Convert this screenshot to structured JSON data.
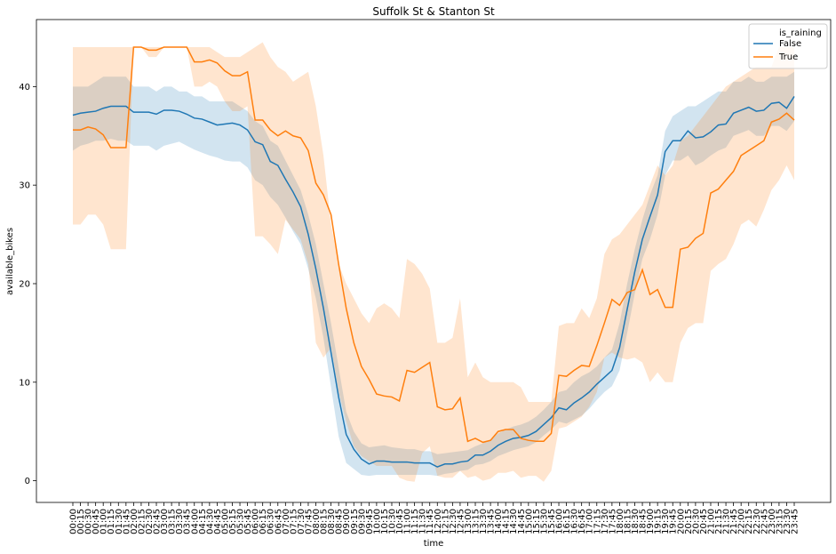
{
  "chart_data": {
    "type": "line",
    "title": "Suffolk St & Stanton St",
    "x_label": "time",
    "y_label": "available_bikes",
    "categories": [
      "00:00",
      "00:15",
      "00:30",
      "00:45",
      "01:00",
      "01:15",
      "01:30",
      "01:45",
      "02:00",
      "02:15",
      "02:30",
      "02:45",
      "03:00",
      "03:15",
      "03:30",
      "03:45",
      "04:00",
      "04:15",
      "04:30",
      "04:45",
      "05:00",
      "05:15",
      "05:30",
      "05:45",
      "06:00",
      "06:15",
      "06:30",
      "06:45",
      "07:00",
      "07:15",
      "07:30",
      "07:45",
      "08:00",
      "08:15",
      "08:30",
      "08:45",
      "09:00",
      "09:15",
      "09:30",
      "09:45",
      "10:00",
      "10:15",
      "10:30",
      "10:45",
      "11:00",
      "11:15",
      "11:30",
      "11:45",
      "12:00",
      "12:15",
      "12:30",
      "12:45",
      "13:00",
      "13:15",
      "13:30",
      "13:45",
      "14:00",
      "14:15",
      "14:30",
      "14:45",
      "15:00",
      "15:15",
      "15:30",
      "15:45",
      "16:00",
      "16:15",
      "16:30",
      "16:45",
      "17:00",
      "17:15",
      "17:30",
      "17:45",
      "18:00",
      "18:15",
      "18:30",
      "18:45",
      "19:00",
      "19:15",
      "19:30",
      "19:45",
      "20:00",
      "20:15",
      "20:30",
      "20:45",
      "21:00",
      "21:15",
      "21:30",
      "21:45",
      "22:00",
      "22:15",
      "22:30",
      "22:45",
      "23:00",
      "23:15",
      "23:30",
      "23:45"
    ],
    "legend_title": "is_raining",
    "legend_position": "upper right",
    "ylim": [
      -2.2,
      46.8
    ],
    "yticks": [
      0,
      10,
      20,
      30,
      40
    ],
    "series": [
      {
        "name": "False",
        "color": "#1f77b4",
        "values": [
          37.1,
          37.3,
          37.4,
          37.5,
          37.8,
          38.0,
          38.0,
          38.0,
          37.4,
          37.4,
          37.4,
          37.2,
          37.6,
          37.6,
          37.5,
          37.2,
          36.8,
          36.7,
          36.4,
          36.1,
          36.2,
          36.3,
          36.1,
          35.6,
          34.4,
          34.1,
          32.4,
          32.0,
          30.6,
          29.3,
          27.8,
          25.0,
          21.5,
          17.5,
          13.0,
          8.5,
          4.7,
          3.2,
          2.2,
          1.7,
          2.0,
          2.0,
          1.9,
          1.9,
          1.9,
          1.8,
          1.8,
          1.8,
          1.4,
          1.7,
          1.7,
          1.9,
          2.0,
          2.6,
          2.6,
          3.0,
          3.6,
          4.0,
          4.3,
          4.4,
          4.6,
          5.0,
          5.7,
          6.4,
          7.4,
          7.2,
          7.9,
          8.4,
          9.0,
          9.8,
          10.5,
          11.2,
          13.5,
          17.4,
          21.2,
          24.5,
          26.8,
          29.0,
          33.4,
          34.5,
          34.5,
          35.5,
          34.8,
          34.9,
          35.4,
          36.1,
          36.2,
          37.3,
          37.6,
          37.9,
          37.5,
          37.6,
          38.3,
          38.4,
          37.8,
          39.0
        ],
        "upper": [
          40,
          40,
          40,
          40.5,
          41,
          41,
          41,
          41,
          40,
          40,
          40,
          39.5,
          40,
          40,
          39.5,
          39.5,
          39,
          39,
          38.5,
          38.5,
          38.5,
          38.5,
          38,
          37.5,
          36.5,
          36,
          34.5,
          34,
          32.5,
          31,
          29.5,
          27,
          24,
          20,
          16,
          11.5,
          7,
          5,
          3.8,
          3.4,
          3.5,
          3.6,
          3.4,
          3.3,
          3.2,
          3.2,
          3,
          3,
          2.7,
          2.8,
          2.9,
          3,
          3.1,
          3.5,
          3.8,
          4.2,
          4.8,
          5.2,
          5.5,
          5.7,
          6,
          6.5,
          7.2,
          8,
          9,
          9.2,
          10,
          10.6,
          11,
          11.6,
          12.5,
          13.3,
          16,
          20,
          23.5,
          26.5,
          29,
          31,
          35.5,
          37,
          37.5,
          38,
          38,
          38.5,
          39,
          39.5,
          39.5,
          40.5,
          40.5,
          41,
          40.5,
          40.5,
          41,
          41,
          41,
          41.5
        ],
        "lower": [
          33.5,
          34,
          34.2,
          34.5,
          34.5,
          34.7,
          34.5,
          34.5,
          34,
          34,
          34,
          33.5,
          34,
          34.2,
          34.4,
          34,
          33.6,
          33.3,
          33,
          32.8,
          32.5,
          32.4,
          32.4,
          31.8,
          30.5,
          30,
          28.8,
          28,
          26.7,
          25.3,
          24,
          21.5,
          18.5,
          14.5,
          9.5,
          4.5,
          1.8,
          1.2,
          0.6,
          0.5,
          0.6,
          0.6,
          0.6,
          0.6,
          0.6,
          0.6,
          0.6,
          0.6,
          0.5,
          0.7,
          0.8,
          1,
          1.1,
          1.6,
          1.7,
          2,
          2.5,
          2.8,
          3.1,
          3.3,
          3.5,
          3.9,
          4.6,
          5.2,
          6,
          5.8,
          6.2,
          6.6,
          7.3,
          8.2,
          9,
          9.6,
          11.2,
          15,
          19,
          22.5,
          24.5,
          27,
          31,
          32.5,
          32.5,
          33,
          32,
          32.4,
          33,
          33.5,
          33.8,
          35,
          35.3,
          35.6,
          35,
          35,
          36,
          36,
          35.5,
          36.5
        ]
      },
      {
        "name": "True",
        "color": "#ff7f0e",
        "values": [
          35.6,
          35.6,
          35.9,
          35.7,
          35.1,
          33.8,
          33.8,
          33.8,
          44.0,
          44.0,
          43.7,
          43.7,
          44.0,
          44.0,
          44.0,
          44.0,
          42.5,
          42.5,
          42.7,
          42.4,
          41.6,
          41.1,
          41.1,
          41.5,
          36.6,
          36.6,
          35.6,
          35.0,
          35.5,
          35.0,
          34.8,
          33.5,
          30.2,
          29.0,
          27.0,
          22.0,
          17.5,
          14.0,
          11.6,
          10.3,
          8.8,
          8.6,
          8.5,
          8.1,
          11.2,
          11.0,
          11.5,
          12.0,
          7.5,
          7.2,
          7.3,
          8.4,
          4.0,
          4.3,
          3.9,
          4.1,
          5.0,
          5.2,
          5.2,
          4.3,
          4.1,
          4.0,
          4.0,
          4.8,
          10.7,
          10.6,
          11.2,
          11.7,
          11.6,
          13.7,
          16.0,
          18.4,
          17.8,
          19.1,
          19.4,
          21.4,
          18.9,
          19.4,
          17.6,
          17.6,
          23.5,
          23.7,
          24.6,
          25.1,
          29.2,
          29.6,
          30.5,
          31.4,
          33.0,
          33.5,
          34.0,
          34.5,
          36.4,
          36.7,
          37.3,
          36.6
        ],
        "upper": [
          44,
          44,
          44,
          44,
          44,
          44,
          44,
          44,
          44,
          44,
          44,
          44,
          44,
          44,
          44,
          44,
          44,
          44,
          44,
          43.5,
          43,
          43,
          43,
          43.5,
          44,
          44.5,
          43,
          42,
          41.5,
          40.5,
          41,
          41.5,
          38,
          33,
          26,
          22,
          20,
          18.5,
          17,
          16,
          17.5,
          18,
          17.5,
          16.5,
          22.5,
          22,
          21,
          19.5,
          14,
          14,
          14.5,
          18.5,
          10.5,
          12,
          10.5,
          10,
          10,
          10,
          10,
          9.5,
          8,
          8,
          8,
          8,
          15.7,
          16,
          16,
          17.5,
          16.5,
          18.5,
          23,
          24.5,
          25,
          26,
          27,
          28,
          30,
          32,
          31,
          32,
          34.5,
          35,
          36,
          37,
          38,
          39,
          40,
          40.5,
          41,
          41.5,
          42,
          42,
          42,
          44,
          44,
          44
        ],
        "lower": [
          26,
          26,
          27,
          27,
          26,
          23.5,
          23.5,
          23.5,
          44,
          44,
          43,
          43,
          44,
          44,
          44,
          44,
          40,
          40,
          40.5,
          40,
          38.5,
          37.5,
          37.5,
          38,
          24.8,
          24.8,
          24,
          23,
          26.5,
          25.5,
          24.5,
          22,
          14,
          12.5,
          13.5,
          9,
          6,
          3.5,
          2.5,
          2,
          1.5,
          1.5,
          1.5,
          0.3,
          0,
          -0.1,
          2.8,
          3.5,
          0.5,
          0.3,
          0.3,
          1,
          0.3,
          0.5,
          0,
          0.2,
          0.8,
          0.8,
          1,
          0.3,
          0.5,
          0.5,
          -0.1,
          1,
          5.3,
          5.5,
          6,
          6.5,
          7.5,
          9,
          12.5,
          13,
          12.5,
          12.3,
          12.5,
          12,
          10,
          11,
          10,
          10,
          14,
          15.5,
          16,
          16,
          21.3,
          22,
          22.5,
          24,
          26,
          26.5,
          25.8,
          27.5,
          29.5,
          30.5,
          32,
          30.5
        ]
      }
    ]
  }
}
